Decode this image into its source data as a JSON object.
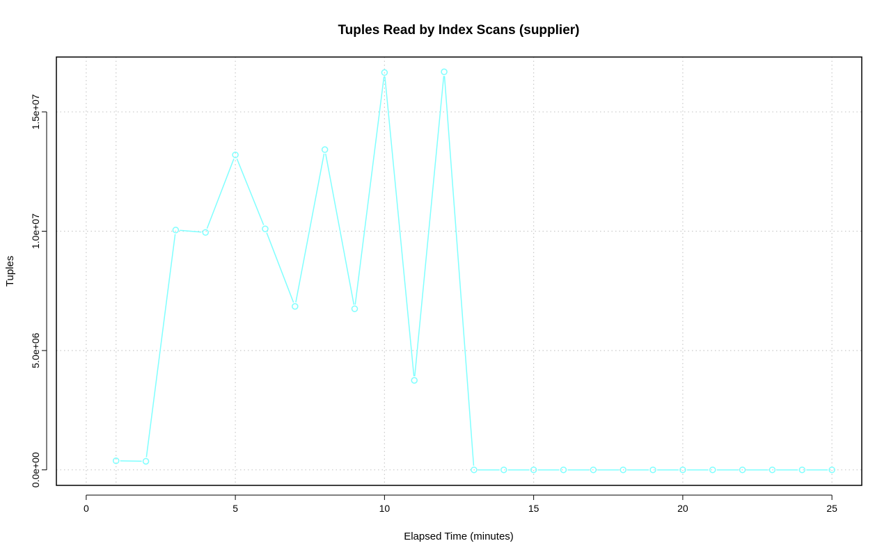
{
  "chart_data": {
    "type": "line",
    "title": "Tuples Read by Index Scans (supplier)",
    "xlabel": "Elapsed Time (minutes)",
    "ylabel": "Tuples",
    "xlim": [
      -1,
      26
    ],
    "ylim": [
      -650000,
      17300000
    ],
    "x_ticks": [
      0,
      5,
      10,
      15,
      20,
      25
    ],
    "x_tick_labels": [
      "0",
      "5",
      "10",
      "15",
      "20",
      "25"
    ],
    "y_ticks": [
      0,
      5000000,
      10000000,
      15000000
    ],
    "y_tick_labels": [
      "0.0e+00",
      "5.0e+06",
      "1.0e+07",
      "1.5e+07"
    ],
    "x_grid": [
      0,
      1,
      5,
      10,
      15,
      20,
      25
    ],
    "grid": true,
    "series": [
      {
        "color": "#7fffff",
        "marker": "circle",
        "x": [
          1,
          2,
          3,
          4,
          5,
          6,
          7,
          8,
          9,
          10,
          11,
          12,
          13,
          14,
          15,
          16,
          17,
          18,
          19,
          20,
          21,
          22,
          23,
          24,
          25
        ],
        "y": [
          380000,
          360000,
          10050000,
          9950000,
          13200000,
          10100000,
          6850000,
          13420000,
          6750000,
          16650000,
          3750000,
          16680000,
          0,
          0,
          0,
          0,
          0,
          0,
          0,
          0,
          0,
          0,
          0,
          0,
          0
        ]
      }
    ]
  }
}
